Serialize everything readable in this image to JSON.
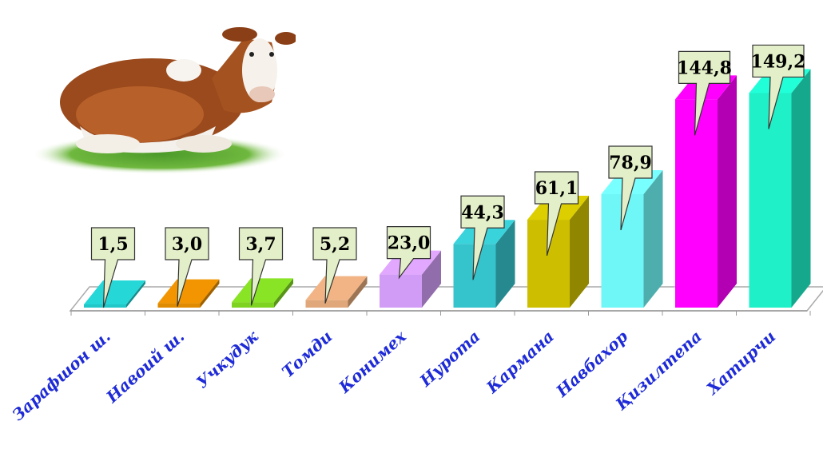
{
  "chart_data": {
    "type": "bar",
    "style": "3d-columns",
    "categories": [
      "Зарафшон ш.",
      "Навоий ш.",
      "Учкудук",
      "Томди",
      "Конимех",
      "Нурота",
      "Кармана",
      "Навбахор",
      "Қизилтепа",
      "Хатирчи"
    ],
    "values": [
      1.5,
      3.0,
      3.7,
      5.2,
      23.0,
      44.3,
      61.1,
      78.9,
      144.8,
      149.2
    ],
    "value_labels": [
      "1,5",
      "3,0",
      "3,7",
      "5,2",
      "23,0",
      "44,3",
      "61,1",
      "78,9",
      "144,8",
      "149,2"
    ],
    "colors": [
      "#22c7c7",
      "#e08a00",
      "#7ed321",
      "#e0a77a",
      "#d19cf5",
      "#35c3cc",
      "#cdbf00",
      "#6ff7f7",
      "#ff00ff",
      "#1ff0c8"
    ],
    "title": "",
    "xlabel": "",
    "ylabel": "",
    "ylim": [
      0,
      150
    ],
    "grid": false,
    "legend": "none"
  },
  "decoration": {
    "image": "cow-illustration"
  }
}
